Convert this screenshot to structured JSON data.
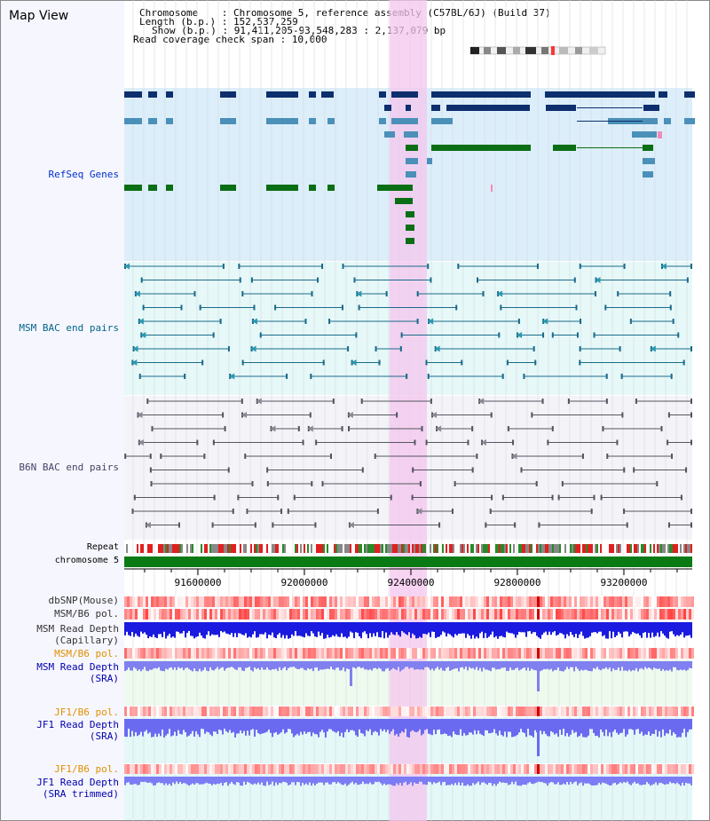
{
  "window_title": "Map View",
  "header": {
    "chromosome_key": "Chromosome    : Chromosome 5, reference assembly (C57BL/6J) (Build 37)",
    "length_key": "Length (b.p.) : 152,537,259",
    "show_key": "Show (b.p.) : 91,411,205-93,548,283 : 2,137,079 bp",
    "coverage_key": "Read coverage check span : 10,000"
  },
  "tracks": {
    "refseq": "RefSeq Genes",
    "msm_bac": "MSM BAC end pairs",
    "b6n_bac": "B6N BAC end pairs",
    "repeat": "Repeat",
    "chromosome": "chromosome 5",
    "dbsnp": "dbSNP(Mouse)",
    "msm_b6_pol_1": "MSM/B6 pol.",
    "msm_depth_cap_1": "MSM Read Depth",
    "msm_depth_cap_2": "(Capillary)",
    "msm_b6_pol_2": "MSM/B6 pol.",
    "msm_depth_sra_1": "MSM Read Depth",
    "msm_depth_sra_2": "(SRA)",
    "jf1_b6_pol_1": "JF1/B6 pol.",
    "jf1_depth_sra_1": "JF1 Read Depth",
    "jf1_depth_sra_2": "(SRA)",
    "jf1_b6_pol_2": "JF1/B6 pol.",
    "jf1_depth_trim_1": "JF1 Read Depth",
    "jf1_depth_trim_2": "(SRA trimmed)"
  },
  "axis": {
    "ticks": [
      "91600000",
      "92000000",
      "92400000",
      "92800000",
      "93200000"
    ]
  },
  "colors": {
    "refseq_dark": "#0d2f6e",
    "refseq_mid": "#4a90b8",
    "refseq_green": "#0a6e14",
    "highlight": "#f4c6ee",
    "msm_label": "#006688",
    "refseq_label": "#0033cc",
    "pol_label": "#e09000",
    "depth_label": "#0000aa"
  }
}
